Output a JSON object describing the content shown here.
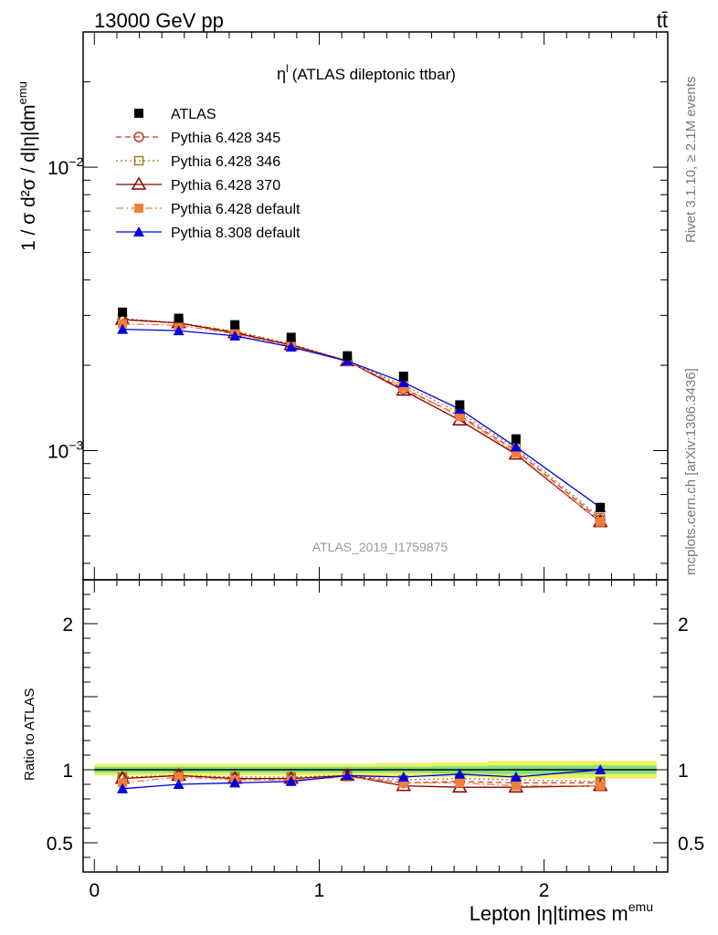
{
  "header": {
    "left": "13000 GeV pp",
    "right": "tt̄"
  },
  "side_labels": {
    "rivet": "Rivet 3.1.10, ≥ 2.1M events",
    "mcplots": "mcplots.cern.ch [arXiv:1306.3436]"
  },
  "chart_data": {
    "type": "line",
    "title": "η",
    "title_sup": "l",
    "title_rest": "(ATLAS dileptonic ttbar)",
    "watermark": "ATLAS_2019_I1759875",
    "ylabel": "1 / σ d²σ / d|η|dm",
    "ylabel_sup": "emu",
    "xlabel": "Lepton |η|times m",
    "xlabel_sup": "emu",
    "ratio_ylabel": "Ratio to ATLAS",
    "x": [
      0.125,
      0.375,
      0.625,
      0.875,
      1.125,
      1.375,
      1.625,
      1.875,
      2.25
    ],
    "xlim": [
      -0.05,
      2.55
    ],
    "ylim": [
      0.00035,
      0.03
    ],
    "yscale": "log",
    "ratio_ylim": [
      0.3,
      2.3
    ],
    "x_ticks": [
      "0",
      "1",
      "2"
    ],
    "y_ticks": [
      {
        "base": "10",
        "exp": "−3"
      },
      {
        "base": "10",
        "exp": "−2"
      }
    ],
    "ratio_ticks": [
      "0.5",
      "1",
      "2"
    ],
    "legend_position": "top-left",
    "series": [
      {
        "name": "ATLAS",
        "color": "#000000",
        "marker": "square-filled",
        "line": "none",
        "values": [
          0.00308,
          0.00293,
          0.00278,
          0.00251,
          0.00216,
          0.00183,
          0.00145,
          0.0011,
          0.00063
        ]
      },
      {
        "name": "Pythia 6.428 345",
        "color": "#c0392b",
        "marker": "circle-open",
        "line": "dashed",
        "values": [
          0.0029,
          0.00282,
          0.00262,
          0.00236,
          0.00207,
          0.00165,
          0.00133,
          0.001,
          0.00057
        ],
        "ratio": [
          0.94,
          0.96,
          0.94,
          0.94,
          0.96,
          0.91,
          0.92,
          0.91,
          0.91
        ]
      },
      {
        "name": "Pythia 6.428 346",
        "color": "#a07820",
        "marker": "square-open",
        "line": "dotted",
        "values": [
          0.00292,
          0.00282,
          0.00264,
          0.00238,
          0.00207,
          0.0017,
          0.00136,
          0.00102,
          0.00058
        ],
        "ratio": [
          0.95,
          0.96,
          0.95,
          0.95,
          0.96,
          0.93,
          0.94,
          0.93,
          0.92
        ]
      },
      {
        "name": "Pythia 6.428 370",
        "color": "#8b0000",
        "marker": "triangle-open",
        "line": "solid",
        "values": [
          0.0029,
          0.00282,
          0.0026,
          0.00236,
          0.00207,
          0.00163,
          0.00128,
          0.00097,
          0.00056
        ],
        "ratio": [
          0.94,
          0.96,
          0.94,
          0.94,
          0.96,
          0.89,
          0.88,
          0.88,
          0.89
        ]
      },
      {
        "name": "Pythia 6.428 default",
        "color": "#f07f3c",
        "marker": "square-filled",
        "line": "dashdot",
        "values": [
          0.0028,
          0.00277,
          0.00258,
          0.00234,
          0.00206,
          0.00167,
          0.00132,
          0.00098,
          0.00056
        ],
        "ratio": [
          0.91,
          0.95,
          0.93,
          0.93,
          0.95,
          0.91,
          0.91,
          0.89,
          0.89
        ]
      },
      {
        "name": "Pythia 8.308 default",
        "color": "#0000dd",
        "marker": "triangle-filled",
        "line": "solid",
        "values": [
          0.00268,
          0.00265,
          0.00254,
          0.00232,
          0.00207,
          0.00174,
          0.0014,
          0.00103,
          0.00063
        ],
        "ratio": [
          0.87,
          0.9,
          0.91,
          0.92,
          0.96,
          0.95,
          0.97,
          0.95,
          1.0
        ]
      }
    ],
    "band": {
      "inner_color": "#7fe07f",
      "outer_color": "#f0f060",
      "inner": [
        0.02,
        0.02,
        0.02,
        0.02,
        0.02,
        0.02,
        0.025,
        0.03,
        0.03
      ],
      "outer": [
        0.04,
        0.04,
        0.04,
        0.04,
        0.04,
        0.045,
        0.05,
        0.06,
        0.06
      ]
    }
  }
}
